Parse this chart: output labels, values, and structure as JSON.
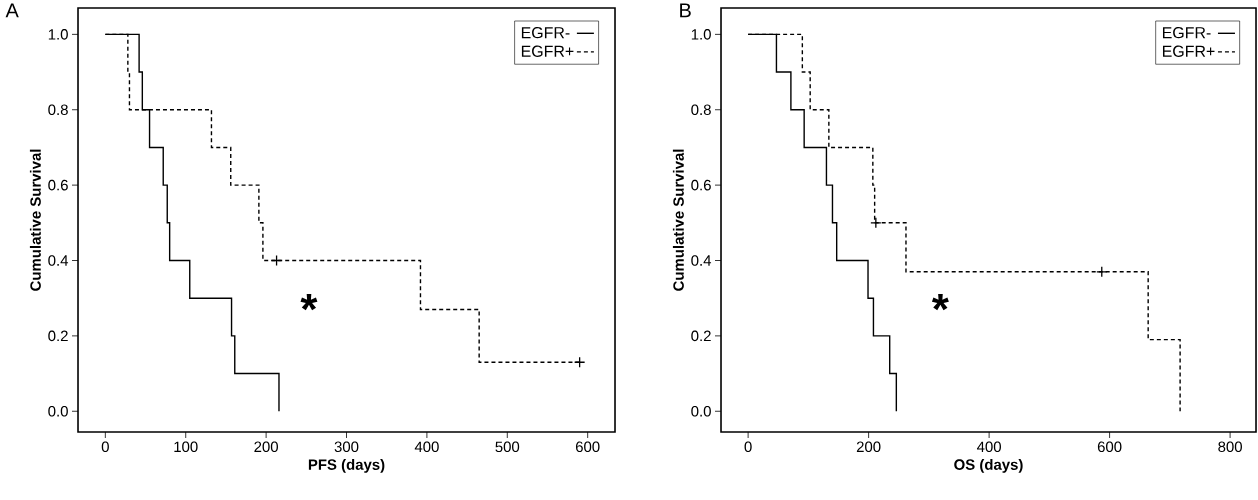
{
  "chart_data": [
    {
      "type": "step",
      "title": "A",
      "xlabel": "PFS (days)",
      "ylabel": "Cumulative Survival",
      "annotations": [
        "*"
      ],
      "xlim": [
        -34,
        634
      ],
      "ylim": [
        -0.055,
        1.07
      ],
      "xticks": [
        0,
        100,
        200,
        300,
        400,
        500,
        600
      ],
      "yticks": [
        {
          "value": 0,
          "label": "0.0"
        },
        {
          "value": 0.2,
          "label": "0.2"
        },
        {
          "value": 0.4,
          "label": "0.4"
        },
        {
          "value": 0.6,
          "label": "0.6"
        },
        {
          "value": 0.8,
          "label": "0.8"
        },
        {
          "value": 1,
          "label": "1.0"
        }
      ],
      "legend": "top right",
      "series": [
        {
          "name": "EGFR-",
          "color": "#000000",
          "line_style": "solid",
          "x": [
            0,
            42,
            46,
            55,
            72,
            77,
            80,
            105,
            157,
            161,
            216
          ],
          "values": [
            1,
            0.9,
            0.8,
            0.7,
            0.6,
            0.5,
            0.4,
            0.3,
            0.2,
            0.1,
            0
          ]
        },
        {
          "name": "EGFR+",
          "color": "#000000",
          "line_style": "dashed",
          "x": [
            0,
            28,
            30,
            132,
            156,
            191,
            196,
            392,
            465,
            590
          ],
          "values": [
            1,
            0.9,
            0.8,
            0.7,
            0.6,
            0.5,
            0.4,
            0.27,
            0.13,
            0.13
          ]
        },
        {
          "type": "scatter",
          "marker": "cross",
          "color": "#000000",
          "x": [
            213,
            590
          ],
          "values": [
            0.4,
            0.13
          ]
        }
      ]
    },
    {
      "type": "step",
      "title": "B",
      "xlabel": "OS (days)",
      "ylabel": "Cumulative Survival",
      "annotations": [
        "*"
      ],
      "xlim": [
        -45,
        843
      ],
      "ylim": [
        -0.055,
        1.07
      ],
      "xticks": [
        0,
        200,
        400,
        600,
        800
      ],
      "yticks": [
        {
          "value": 0,
          "label": "0.0"
        },
        {
          "value": 0.2,
          "label": "0.2"
        },
        {
          "value": 0.4,
          "label": "0.4"
        },
        {
          "value": 0.6,
          "label": "0.6"
        },
        {
          "value": 0.8,
          "label": "0.8"
        },
        {
          "value": 1,
          "label": "1.0"
        }
      ],
      "legend": "top right",
      "series": [
        {
          "name": "EGFR-",
          "color": "#000000",
          "line_style": "solid",
          "x": [
            0,
            47,
            71,
            93,
            130,
            140,
            147,
            199,
            208,
            235,
            246
          ],
          "values": [
            1,
            0.9,
            0.8,
            0.7,
            0.6,
            0.5,
            0.4,
            0.3,
            0.2,
            0.1,
            0
          ]
        },
        {
          "name": "EGFR+",
          "color": "#000000",
          "line_style": "dashed",
          "x": [
            0,
            90,
            103,
            134,
            207,
            210,
            262,
            664,
            717
          ],
          "values": [
            1,
            0.9,
            0.8,
            0.7,
            0.6,
            0.5,
            0.37,
            0.19,
            0
          ]
        },
        {
          "type": "scatter",
          "marker": "cross",
          "color": "#000000",
          "x": [
            212,
            587
          ],
          "values": [
            0.5,
            0.37
          ]
        }
      ]
    }
  ]
}
